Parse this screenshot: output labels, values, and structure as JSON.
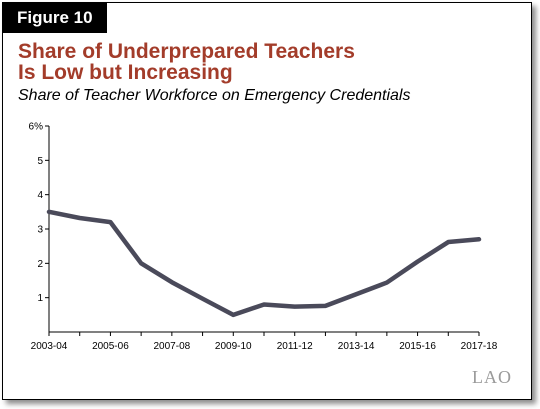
{
  "figure_label": "Figure 10",
  "title_line1": "Share of Underprepared Teachers",
  "title_line2": "Is Low but Increasing",
  "subtitle": "Share of Teacher Workforce on Emergency Credentials",
  "logo": "LAO",
  "colors": {
    "title": "#a33c2a",
    "line": "#4a4a5a",
    "axis": "#000000"
  },
  "chart_data": {
    "type": "line",
    "title": "Share of Teacher Workforce on Emergency Credentials",
    "x": [
      "2003-04",
      "2004-05",
      "2005-06",
      "2006-07",
      "2007-08",
      "2008-09",
      "2009-10",
      "2010-11",
      "2011-12",
      "2012-13",
      "2013-14",
      "2014-15",
      "2015-16",
      "2016-17",
      "2017-18"
    ],
    "x_tick_labels": [
      "2003-04",
      "2005-06",
      "2007-08",
      "2009-10",
      "2011-12",
      "2013-14",
      "2015-16",
      "2017-18"
    ],
    "series": [
      {
        "values": [
          3.5,
          3.32,
          3.2,
          2.0,
          1.45,
          0.97,
          0.5,
          0.8,
          0.74,
          0.76,
          1.1,
          1.44,
          2.05,
          2.62,
          2.7
        ]
      }
    ],
    "y_ticks": [
      1,
      2,
      3,
      4,
      5,
      6
    ],
    "y_tick_labels": [
      "1",
      "2",
      "3",
      "4",
      "5",
      "6%"
    ],
    "ylim": [
      0,
      6
    ],
    "grid": false
  }
}
